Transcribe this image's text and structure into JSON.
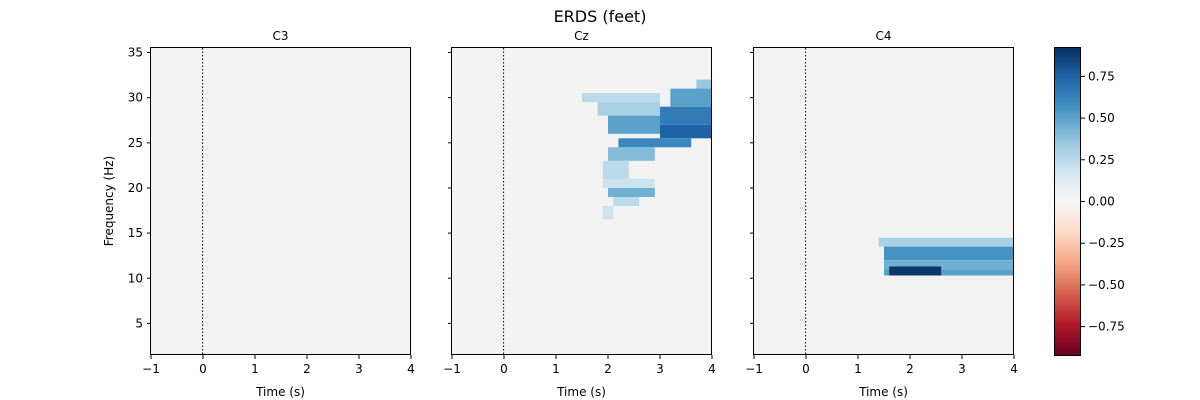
{
  "figure": {
    "title": "ERDS (feet)"
  },
  "chart_data": {
    "type": "heatmap",
    "title": "ERDS (feet)",
    "xlabel": "Time (s)",
    "ylabel": "Frequency (Hz)",
    "xlim": [
      -1,
      4
    ],
    "ylim": [
      1.5,
      35.5
    ],
    "x_ticks": [
      "−1",
      "0",
      "1",
      "2",
      "3",
      "4"
    ],
    "y_ticks": [
      "5",
      "10",
      "15",
      "20",
      "25",
      "30",
      "35"
    ],
    "event_marker_time": 0,
    "colormap": "RdBu",
    "colors": {
      "low": "#67001f",
      "mid": "#f7f7f7",
      "high": "#053061",
      "masked_background": "#f2f2f2"
    },
    "colorbar": {
      "range": [
        -0.92,
        0.92
      ],
      "ticks": [
        "0.75",
        "0.50",
        "0.25",
        "0.00",
        "−0.25",
        "−0.50",
        "−0.75"
      ]
    },
    "panels": [
      {
        "name": "C3",
        "significant_regions": []
      },
      {
        "name": "Cz",
        "significant_regions": [
          {
            "t": [
              3.7,
              4.0
            ],
            "f": [
              31,
              32
            ],
            "value": 0.35
          },
          {
            "t": [
              3.2,
              4.0
            ],
            "f": [
              29,
              31
            ],
            "value": 0.5
          },
          {
            "t": [
              1.5,
              3.0
            ],
            "f": [
              29.5,
              30.5
            ],
            "value": 0.25
          },
          {
            "t": [
              1.8,
              3.0
            ],
            "f": [
              28,
              29.5
            ],
            "value": 0.3
          },
          {
            "t": [
              3.0,
              4.0
            ],
            "f": [
              27,
              29
            ],
            "value": 0.65
          },
          {
            "t": [
              2.0,
              3.0
            ],
            "f": [
              26,
              28
            ],
            "value": 0.5
          },
          {
            "t": [
              3.0,
              4.0
            ],
            "f": [
              25.5,
              27
            ],
            "value": 0.75
          },
          {
            "t": [
              2.2,
              3.6
            ],
            "f": [
              24.5,
              25.5
            ],
            "value": 0.6
          },
          {
            "t": [
              2.0,
              2.9
            ],
            "f": [
              23,
              24.5
            ],
            "value": 0.4
          },
          {
            "t": [
              1.9,
              2.4
            ],
            "f": [
              21,
              23
            ],
            "value": 0.25
          },
          {
            "t": [
              1.9,
              2.9
            ],
            "f": [
              20,
              21
            ],
            "value": 0.2
          },
          {
            "t": [
              2.0,
              2.9
            ],
            "f": [
              19,
              20
            ],
            "value": 0.45
          },
          {
            "t": [
              2.1,
              2.6
            ],
            "f": [
              18,
              19
            ],
            "value": 0.25
          },
          {
            "t": [
              1.9,
              2.1
            ],
            "f": [
              16.5,
              18
            ],
            "value": 0.2
          }
        ]
      },
      {
        "name": "C4",
        "significant_regions": [
          {
            "t": [
              1.4,
              4.0
            ],
            "f": [
              13.5,
              14.5
            ],
            "value": 0.3
          },
          {
            "t": [
              1.5,
              4.0
            ],
            "f": [
              12,
              13.5
            ],
            "value": 0.55
          },
          {
            "t": [
              1.5,
              4.0
            ],
            "f": [
              11,
              12
            ],
            "value": 0.45
          },
          {
            "t": [
              1.5,
              4.0
            ],
            "f": [
              10.3,
              11
            ],
            "value": 0.5
          },
          {
            "t": [
              1.6,
              2.6
            ],
            "f": [
              10.3,
              11.3
            ],
            "value": 0.9
          }
        ]
      }
    ]
  }
}
